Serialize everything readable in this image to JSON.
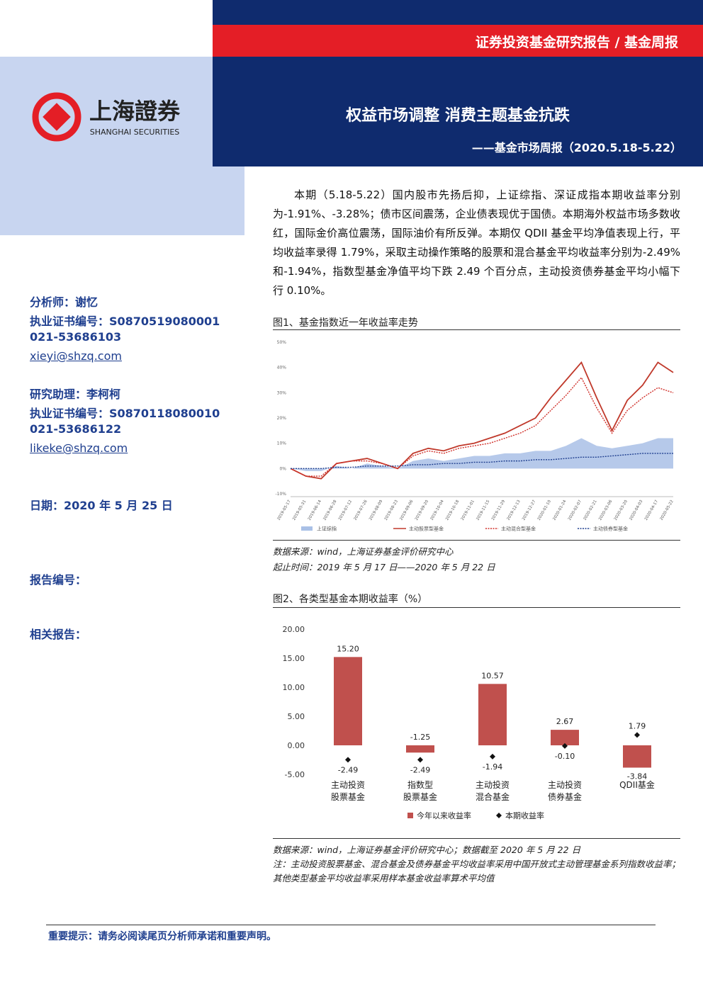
{
  "header": {
    "category": "证券投资基金研究报告 / 基金周报",
    "title": "权益市场调整 消费主题基金抗跌",
    "subtitle": "——基金市场周报（2020.5.18-5.22）"
  },
  "logo": {
    "name": "上海證券",
    "name_en": "SHANGHAI SECURITIES"
  },
  "sidebar": {
    "analyst": "分析师：谢忆",
    "analyst_cert": "执业证书编号：S0870519080001",
    "analyst_phone": "021-53686103",
    "analyst_email": "xieyi@shzq.com",
    "assistant": "研究助理：李柯柯",
    "assistant_cert": "执业证书编号：S0870118080010",
    "assistant_phone": "021-53686122",
    "assistant_email": "likeke@shzq.com",
    "date": "日期：2020 年 5 月 25 日",
    "report_no": "报告编号：",
    "related": "相关报告："
  },
  "summary": "本期（5.18-5.22）国内股市先扬后抑，上证综指、深证成指本期收益率分别为-1.91%、-3.28%；债市区间震荡，企业债表现优于国债。本期海外权益市场多数收红，国际金价高位震荡，国际油价有所反弹。本期仅 QDII 基金平均净值表现上行，平均收益率录得 1.79%，采取主动操作策略的股票和混合基金平均收益率分别为-2.49%和-1.94%，指数型基金净值平均下跌 2.49 个百分点，主动投资债券基金平均小幅下行 0.10%。",
  "figure1": {
    "caption": "图1、基金指数近一年收益率走势",
    "source": "数据来源：wind，上海证券基金评价研究中心",
    "period": "起止时间：2019 年 5 月 17 日——2020 年 5 月 22 日"
  },
  "figure2": {
    "caption": "图2、各类型基金本期收益率（%）",
    "source": "数据来源：wind，上海证券基金评价研究中心；数据截至 2020 年 5 月 22 日",
    "note": "注：主动投资股票基金、混合基金及债券基金平均收益率采用中国开放式主动管理基金系列指数收益率；其他类型基金平均收益率采用样本基金收益率算术平均值"
  },
  "footer": "重要提示：请务必阅读尾页分析师承诺和重要声明。",
  "chart_data": [
    {
      "type": "line",
      "categories": [
        "2019-05-17",
        "2019-05-31",
        "2019-06-14",
        "2019-06-28",
        "2019-07-12",
        "2019-07-26",
        "2019-08-09",
        "2019-08-23",
        "2019-09-06",
        "2019-09-20",
        "2019-10-04",
        "2019-10-18",
        "2019-11-01",
        "2019-11-15",
        "2019-11-29",
        "2019-12-13",
        "2019-12-27",
        "2020-01-10",
        "2020-01-24",
        "2020-02-07",
        "2020-02-21",
        "2020-03-06",
        "2020-03-20",
        "2020-04-03",
        "2020-04-17",
        "2020-05-22"
      ],
      "series": [
        {
          "name": "上证综指",
          "color": "#a9c0e6",
          "style": "area",
          "values": [
            0,
            -1,
            -1,
            1,
            0,
            2,
            1,
            0,
            3,
            4,
            3,
            4,
            5,
            5,
            6,
            6,
            7,
            7,
            9,
            12,
            9,
            8,
            9,
            10,
            12,
            12
          ]
        },
        {
          "name": "主动股票型基金",
          "color": "#c0392b",
          "style": "solid",
          "values": [
            0,
            -3,
            -4,
            2,
            3,
            4,
            2,
            0,
            6,
            8,
            7,
            9,
            10,
            12,
            14,
            17,
            20,
            28,
            35,
            42,
            28,
            15,
            27,
            33,
            42,
            38
          ]
        },
        {
          "name": "主动混合型基金",
          "color": "#d0302a",
          "style": "dotted",
          "values": [
            0,
            -3,
            -3,
            2,
            3,
            3,
            2,
            0,
            5,
            7,
            6,
            8,
            9,
            10,
            12,
            14,
            17,
            23,
            29,
            36,
            24,
            14,
            23,
            28,
            32,
            30
          ]
        },
        {
          "name": "主动债券型基金",
          "color": "#1f3f8f",
          "style": "dotted",
          "values": [
            0,
            0,
            0,
            0.5,
            0.5,
            1,
            1,
            1,
            1.5,
            1.5,
            2,
            2,
            2.5,
            2.5,
            3,
            3,
            3.5,
            3.5,
            4,
            4.5,
            4.5,
            5,
            5.5,
            6,
            6,
            6
          ]
        }
      ],
      "ylim": [
        -10,
        50
      ],
      "yticks": [
        {
          "value": -10,
          "label": "-10%"
        },
        {
          "value": 0,
          "label": "0%"
        },
        {
          "value": 10,
          "label": "10%"
        },
        {
          "value": 20,
          "label": "20%"
        },
        {
          "value": 30,
          "label": "30%"
        },
        {
          "value": 40,
          "label": "40%"
        },
        {
          "value": 50,
          "label": "50%"
        }
      ],
      "grid": false
    },
    {
      "type": "bar",
      "categories": [
        [
          "主动投资",
          "股票基金"
        ],
        [
          "指数型",
          "股票基金"
        ],
        [
          "主动投资",
          "混合基金"
        ],
        [
          "主动投资",
          "债券基金"
        ],
        [
          "QDII基金"
        ]
      ],
      "series": [
        {
          "name": "今年以来收益率",
          "color": "#c0504d",
          "mark": "bar",
          "values": [
            15.2,
            -1.25,
            10.57,
            2.67,
            -3.84
          ],
          "value_labels": [
            "15.20",
            "-1.25",
            "10.57",
            "2.67",
            "-3.84"
          ]
        },
        {
          "name": "本期收益率",
          "color": "#111111",
          "mark": "diamond",
          "values": [
            -2.49,
            -2.49,
            -1.94,
            -0.1,
            1.79
          ],
          "value_labels": [
            "-2.49",
            "-2.49",
            "-1.94",
            "-0.10",
            "1.79"
          ]
        }
      ],
      "ylim": [
        -5,
        20
      ],
      "yticks": [
        {
          "value": -5,
          "label": "-5.00"
        },
        {
          "value": 0,
          "label": "0.00"
        },
        {
          "value": 5,
          "label": "5.00"
        },
        {
          "value": 10,
          "label": "10.00"
        },
        {
          "value": 15,
          "label": "15.00"
        },
        {
          "value": 20,
          "label": "20.00"
        }
      ],
      "grid": false
    }
  ]
}
